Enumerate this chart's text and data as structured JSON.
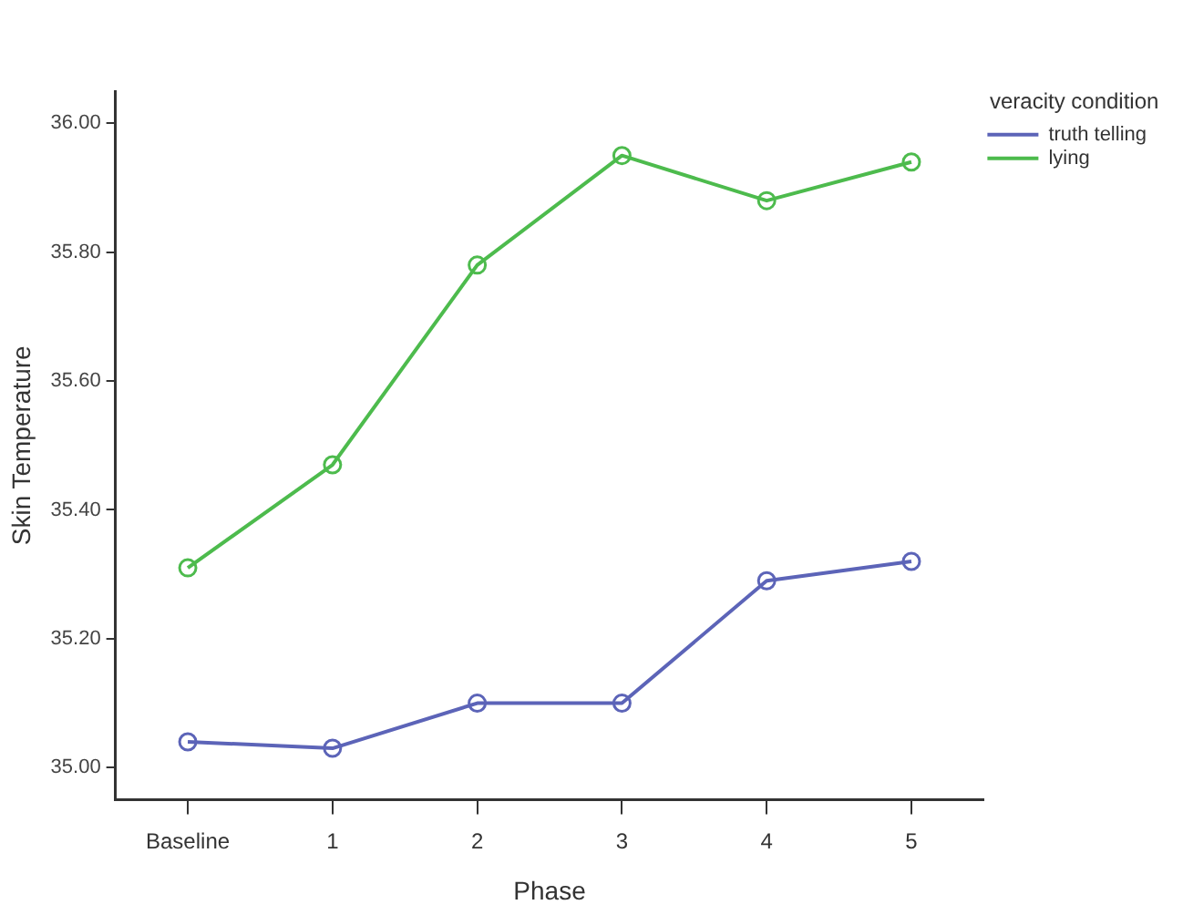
{
  "chart_data": {
    "type": "line",
    "xlabel": "Phase",
    "ylabel": "Skin Temperature",
    "legend_title": "veracity condition",
    "categories": [
      "Baseline",
      "1",
      "2",
      "3",
      "4",
      "5"
    ],
    "series": [
      {
        "name": "truth telling",
        "color": "#5c64b8",
        "values": [
          35.04,
          35.03,
          35.1,
          35.1,
          35.29,
          35.32
        ]
      },
      {
        "name": "lying",
        "color": "#4dbb4d",
        "values": [
          35.31,
          35.47,
          35.78,
          35.95,
          35.88,
          35.94
        ]
      }
    ],
    "ylim": [
      34.95,
      36.05
    ],
    "yticks": [
      {
        "value": 35,
        "label": "35.00"
      },
      {
        "value": 35.2,
        "label": "35.20"
      },
      {
        "value": 35.4,
        "label": "35.40"
      },
      {
        "value": 35.6,
        "label": "35.60"
      },
      {
        "value": 35.8,
        "label": "35.80"
      },
      {
        "value": 36,
        "label": "36.00"
      }
    ],
    "grid": false,
    "legend": "top right",
    "marker": "circle",
    "line_style": "solid"
  }
}
